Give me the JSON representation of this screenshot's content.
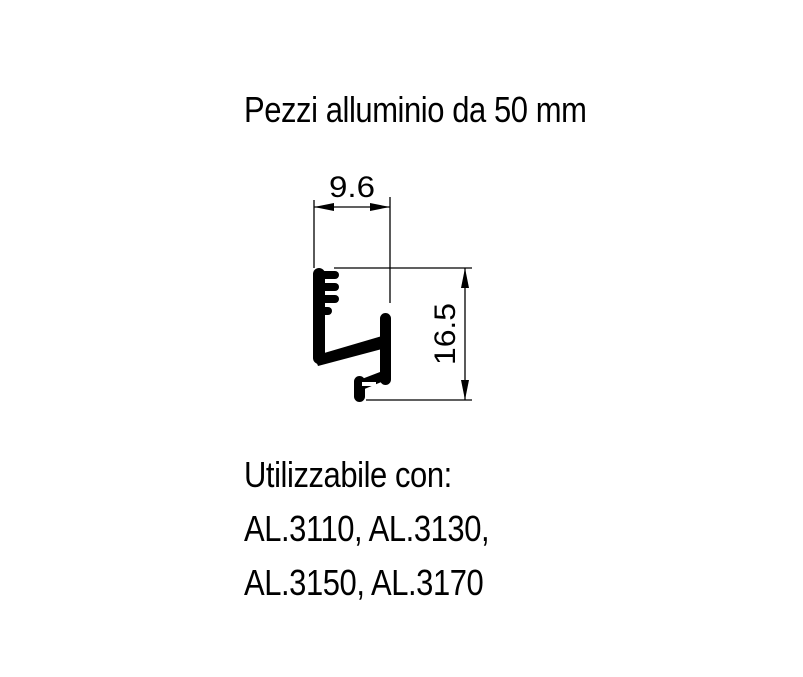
{
  "title": "Pezzi alluminio da 50 mm",
  "dimensions": {
    "width": "9.6",
    "height": "16.5"
  },
  "notes": {
    "heading": "Utilizzabile con:",
    "line1": "AL.3110, AL.3130,",
    "line2": "AL.3150, AL.3170"
  },
  "colors": {
    "ink": "#000000",
    "background": "#ffffff"
  }
}
